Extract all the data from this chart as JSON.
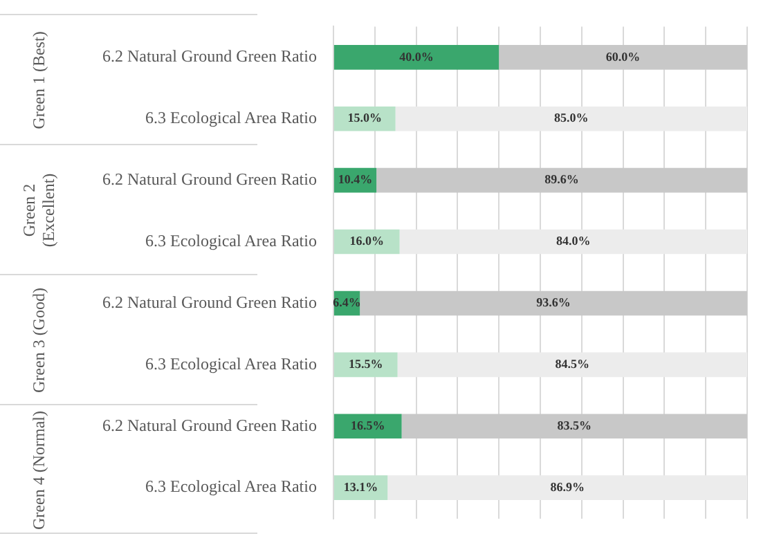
{
  "chart_data": {
    "type": "bar",
    "orientation": "horizontal",
    "stacked": true,
    "categories": [
      "6.2 Natural Ground Green Ratio",
      "6.3 Ecological Area Ratio",
      "6.2 Natural Ground Green Ratio",
      "6.3 Ecological Area Ratio",
      "6.2 Natural Ground Green Ratio",
      "6.3 Ecological Area Ratio",
      "6.2 Natural Ground Green Ratio",
      "6.3 Ecological Area Ratio"
    ],
    "series": [
      {
        "colors": [
          "#3aa76d",
          "#b8e2c8",
          "#3aa76d",
          "#b8e2c8",
          "#3aa76d",
          "#b8e2c8",
          "#3aa76d",
          "#b8e2c8"
        ],
        "values": [
          40.0,
          15.0,
          10.4,
          16.0,
          6.4,
          15.5,
          16.5,
          13.1
        ],
        "value_labels": [
          "40.0%",
          "15.0%",
          "10.4%",
          "16.0%",
          "6.4%",
          "15.5%",
          "16.5%",
          "13.1%"
        ]
      },
      {
        "colors": [
          "#c8c8c8",
          "#ececec",
          "#c8c8c8",
          "#ececec",
          "#c8c8c8",
          "#ececec",
          "#c8c8c8",
          "#ececec"
        ],
        "values": [
          60.0,
          85.0,
          89.6,
          84.0,
          93.6,
          84.5,
          83.5,
          86.9
        ],
        "value_labels": [
          "60.0%",
          "85.0%",
          "89.6%",
          "84.0%",
          "93.6%",
          "84.5%",
          "83.5%",
          "86.9%"
        ]
      }
    ],
    "xlim": [
      0,
      100
    ],
    "xticks": [
      {
        "value": 0,
        "label": null
      },
      {
        "value": 10,
        "label": null
      },
      {
        "value": 20,
        "label": null
      },
      {
        "value": 30,
        "label": null
      },
      {
        "value": 40,
        "label": null
      },
      {
        "value": 50,
        "label": null
      },
      {
        "value": 60,
        "label": null
      },
      {
        "value": 70,
        "label": null
      },
      {
        "value": 80,
        "label": null
      },
      {
        "value": 90,
        "label": null
      },
      {
        "value": 100,
        "label": null
      }
    ],
    "tick_labels": "y",
    "grid": "x",
    "annotations": [
      "Green 1 (Best)",
      "Green 2 (Excellent)",
      "Green 3 (Good)",
      "Green 4 (Normal)"
    ]
  }
}
